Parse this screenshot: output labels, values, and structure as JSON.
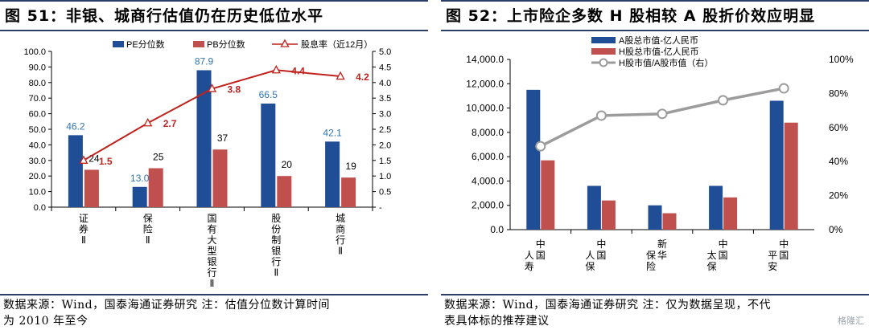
{
  "left": {
    "title": "图 51：非银、城商行估值仍在历史低位水平",
    "source_line1": "数据来源：Wind，国泰海通证券研究 注：估值分位数计算时间",
    "source_line2": "为 2010 年至今"
  },
  "right": {
    "title": "图 52：上市险企多数 H 股相较 A 股折价效应明显",
    "source_line1": "数据来源：Wind，国泰海通证券研究 注：仅为数据呈现，不代",
    "source_line2": "表具体标的推荐建议"
  },
  "watermark": "格隆汇",
  "chart_data": [
    {
      "type": "bar",
      "categories": [
        "证券Ⅱ",
        "保险Ⅱ",
        "国有大型银行Ⅱ",
        "股份制银行Ⅱ",
        "城商行Ⅱ"
      ],
      "series": [
        {
          "name": "PE分位数",
          "values": [
            46.2,
            13.0,
            87.9,
            66.5,
            42.1
          ],
          "color": "#1f4e96",
          "axis": "left"
        },
        {
          "name": "PB分位数",
          "values": [
            24,
            25,
            37,
            20,
            19
          ],
          "color": "#c0504d",
          "axis": "left"
        },
        {
          "name": "股息率（近12月）",
          "type": "line",
          "values": [
            1.5,
            2.7,
            3.8,
            4.4,
            4.2
          ],
          "color": "#c0221e",
          "axis": "right"
        }
      ],
      "ylim": [
        0,
        100
      ],
      "yticks": [
        "0.0",
        "10.0",
        "20.0",
        "30.0",
        "40.0",
        "50.0",
        "60.0",
        "70.0",
        "80.0",
        "90.0",
        "100.0"
      ],
      "y2lim": [
        0,
        5
      ],
      "y2ticks": [
        "-",
        "0.5",
        "1.0",
        "1.5",
        "2.0",
        "2.5",
        "3.0",
        "3.5",
        "4.0",
        "4.5",
        "5.0"
      ],
      "pe_labels": [
        "46.2",
        "13.0",
        "87.9",
        "66.5",
        "42.1"
      ],
      "pb_labels": [
        "24",
        "25",
        "37",
        "20",
        "19"
      ],
      "dy_labels": [
        "1.5",
        "2.7",
        "3.8",
        "4.4",
        "4.2"
      ],
      "legend": "top",
      "grid": false
    },
    {
      "type": "bar",
      "categories": [
        "中国人寿",
        "中国人保",
        "新华保险",
        "中国太保",
        "中国平安"
      ],
      "series": [
        {
          "name": "A股总市值-亿人民币",
          "values": [
            11500,
            3600,
            2000,
            3600,
            10600
          ],
          "color": "#1f4e96",
          "axis": "left"
        },
        {
          "name": "H股总市值-亿人民币",
          "values": [
            5700,
            2400,
            1350,
            2650,
            8800
          ],
          "color": "#c0504d",
          "axis": "left"
        },
        {
          "name": "H股市值/A股市值（右）",
          "type": "line",
          "values": [
            49,
            67,
            68,
            76,
            83
          ],
          "color": "#9c9c9c",
          "axis": "right"
        }
      ],
      "ylim": [
        0,
        14000
      ],
      "yticks": [
        "0.0",
        "2,000.0",
        "4,000.0",
        "6,000.0",
        "8,000.0",
        "10,000.0",
        "12,000.0",
        "14,000.0"
      ],
      "y2lim": [
        0,
        100
      ],
      "y2ticks": [
        "0%",
        "20%",
        "40%",
        "60%",
        "80%",
        "100%"
      ],
      "legend": "top-left",
      "grid": false
    }
  ]
}
